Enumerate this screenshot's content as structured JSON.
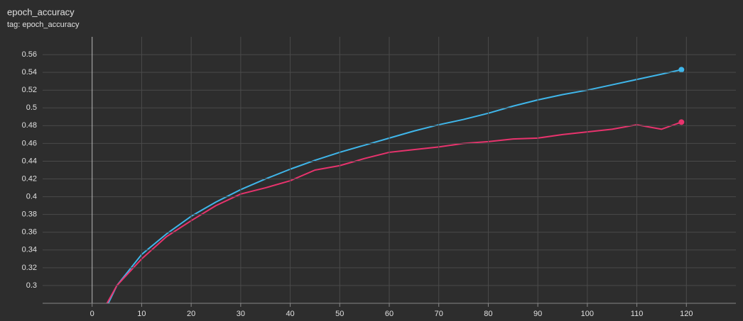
{
  "chart_data": {
    "type": "line",
    "title": "epoch_accuracy",
    "subtitle": "tag: epoch_accuracy",
    "x": [
      3,
      5,
      10,
      15,
      20,
      25,
      30,
      35,
      40,
      45,
      50,
      55,
      60,
      65,
      70,
      75,
      80,
      85,
      90,
      95,
      100,
      105,
      110,
      115,
      119
    ],
    "series": [
      {
        "color": "#3fb6ea",
        "values": [
          0.277,
          0.3,
          0.335,
          0.358,
          0.378,
          0.394,
          0.408,
          0.42,
          0.431,
          0.441,
          0.45,
          0.458,
          0.466,
          0.474,
          0.481,
          0.487,
          0.494,
          0.502,
          0.509,
          0.515,
          0.52,
          0.526,
          0.532,
          0.538,
          0.543
        ]
      },
      {
        "color": "#e8336d",
        "values": [
          0.28,
          0.3,
          0.33,
          0.355,
          0.373,
          0.39,
          0.403,
          0.41,
          0.418,
          0.43,
          0.435,
          0.443,
          0.45,
          0.453,
          0.456,
          0.46,
          0.462,
          0.465,
          0.466,
          0.47,
          0.473,
          0.476,
          0.481,
          0.476,
          0.484
        ]
      }
    ],
    "xlim": [
      -10,
      130
    ],
    "ylim": [
      0.28,
      0.58
    ],
    "xticks": [
      0,
      10,
      20,
      30,
      40,
      50,
      60,
      70,
      80,
      90,
      100,
      110,
      120
    ],
    "yticks": [
      0.3,
      0.32,
      0.34,
      0.36,
      0.38,
      0.4,
      0.42,
      0.44,
      0.46,
      0.48,
      0.5,
      0.52,
      0.54,
      0.56
    ],
    "grid": true
  }
}
